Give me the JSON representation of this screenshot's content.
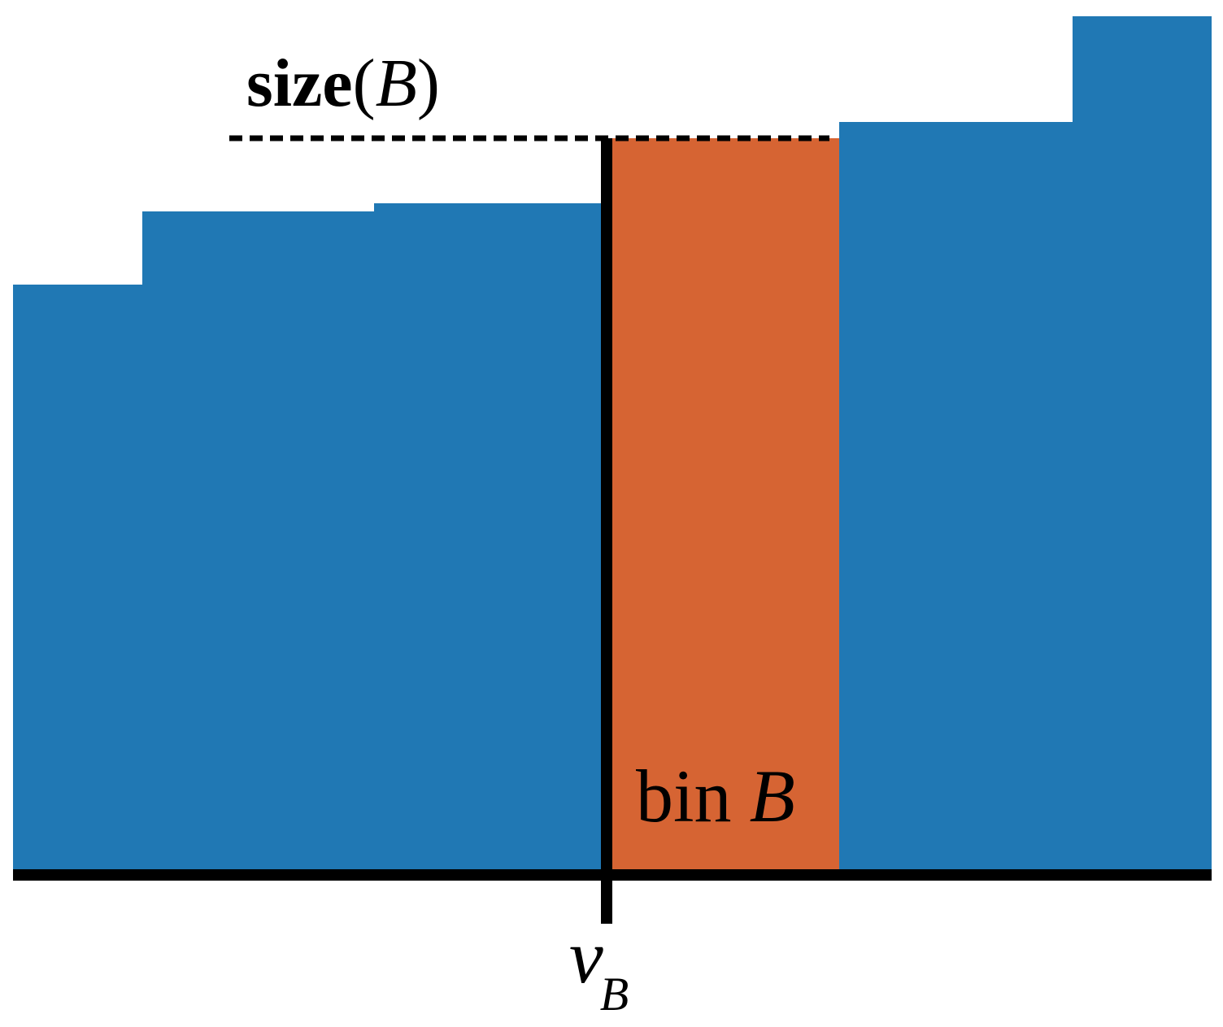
{
  "colors": {
    "default_bin": "#2078b4",
    "highlight_bin": "#d66433",
    "axis": "#000000",
    "dashed_line": "#000000"
  },
  "bins": [
    {
      "label": "",
      "size": 0.72,
      "highlighted": false
    },
    {
      "label": "",
      "size": 0.81,
      "highlighted": false
    },
    {
      "label": "",
      "size": 0.82,
      "highlighted": false
    },
    {
      "label": "bin B",
      "size": 0.9,
      "highlighted": true
    },
    {
      "label": "",
      "size": 0.92,
      "highlighted": false
    },
    {
      "label": "",
      "size": 1.05,
      "highlighted": false
    }
  ],
  "annotations": {
    "size_label_bold": "size",
    "size_label_open": "(",
    "size_label_var": "B",
    "size_label_close": ")",
    "bin_label_word": "bin",
    "bin_label_var": "B",
    "tick_label_main": "v",
    "tick_label_sub": "B"
  }
}
